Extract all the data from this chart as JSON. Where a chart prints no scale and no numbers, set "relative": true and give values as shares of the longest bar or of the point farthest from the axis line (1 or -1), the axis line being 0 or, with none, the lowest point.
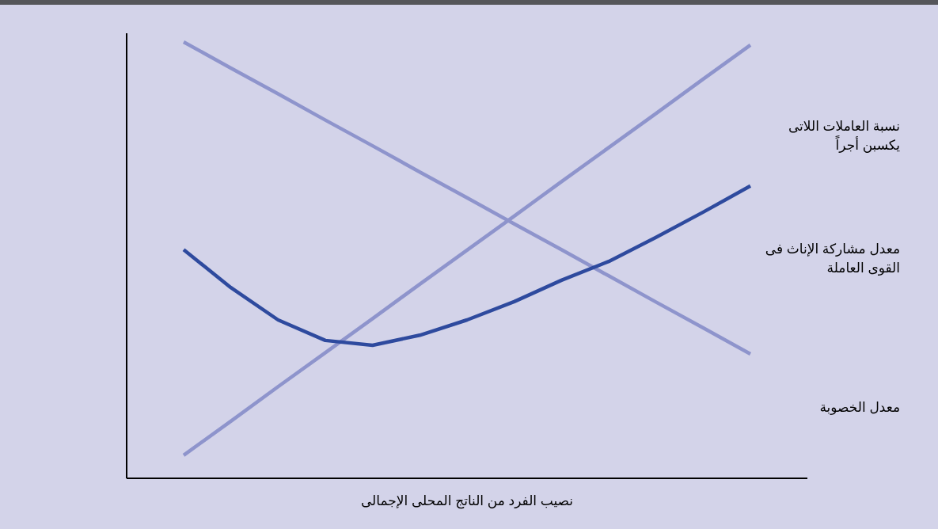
{
  "chart_data": {
    "type": "line",
    "relative": true,
    "xlabel": "نصيب الفرد من الناتج المحلى الإجمالى",
    "categories": [
      null,
      null,
      null,
      null,
      null,
      null,
      null,
      null,
      null,
      null,
      null,
      null,
      null
    ],
    "series": [
      {
        "name": "معدل الخصوبة",
        "color": "#8e94cc",
        "values": [
          1.0,
          0.94,
          0.881,
          0.821,
          0.762,
          0.702,
          0.643,
          0.583,
          0.524,
          0.464,
          0.404,
          0.345,
          0.285
        ]
      },
      {
        "name": "نسبة العاملات اللاتى\nيكسبن أجراً",
        "color": "#8e94cc",
        "values": [
          0.053,
          0.131,
          0.21,
          0.288,
          0.366,
          0.445,
          0.523,
          0.601,
          0.68,
          0.758,
          0.836,
          0.915,
          0.993
        ]
      },
      {
        "name": "معدل مشاركة الإناث فى\nالقوى العاملة",
        "color": "#2e4a9e",
        "values": [
          0.524,
          0.437,
          0.363,
          0.316,
          0.305,
          0.328,
          0.363,
          0.405,
          0.454,
          0.497,
          0.552,
          0.61,
          0.67
        ]
      }
    ]
  }
}
